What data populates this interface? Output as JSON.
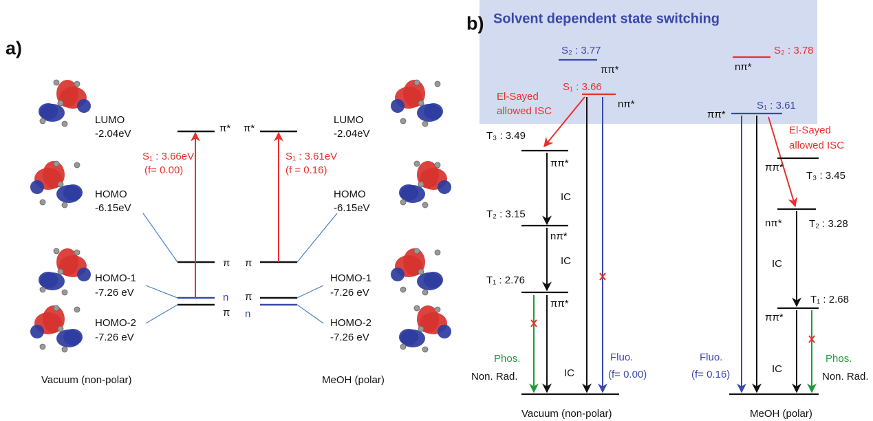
{
  "panel_a": {
    "label": "a)",
    "left_orbitals": [
      {
        "name": "LUMO",
        "energy": "-2.04eV"
      },
      {
        "name": "HOMO",
        "energy": "-6.15eV"
      },
      {
        "name": "HOMO-1",
        "energy": "-7.26 eV"
      },
      {
        "name": "HOMO-2",
        "energy": "-7.26 eV"
      }
    ],
    "right_orbitals": [
      {
        "name": "LUMO",
        "energy": "-2.04eV"
      },
      {
        "name": "HOMO",
        "energy": "-6.15eV"
      },
      {
        "name": "HOMO-1",
        "energy": "-7.26 eV"
      },
      {
        "name": "HOMO-2",
        "energy": "-7.26 eV"
      }
    ],
    "left_levels": [
      "π*",
      "π",
      "n",
      "π"
    ],
    "right_levels": [
      "π*",
      "π",
      "π",
      "n"
    ],
    "left_transition": {
      "state": "S₁ : 3.66eV",
      "oscillator": "(f= 0.00)"
    },
    "right_transition": {
      "state": "S₁ : 3.61eV",
      "oscillator": "(f = 0.16)"
    },
    "left_caption": "Vacuum (non-polar)",
    "right_caption": "MeOH (polar)"
  },
  "panel_b": {
    "label": "b)",
    "title": "Solvent dependent state switching",
    "vacuum": {
      "s2": "S₂ : 3.77",
      "s2_char": "ππ*",
      "s1": "S₁ : 3.66",
      "s1_char": "nπ*",
      "isc": [
        "El-Sayed",
        "allowed ISC"
      ],
      "t3": "T₃ : 3.49",
      "t3_char": "ππ*",
      "t2": "T₂ : 3.15",
      "t2_char": "nπ*",
      "t1": "T₁ : 2.76",
      "t1_char": "ππ*",
      "ic": [
        "IC",
        "IC",
        "IC"
      ],
      "phos": "Phos.",
      "nonrad": "Non. Rad.",
      "fluo": "Fluo.",
      "fluo_f": "(f= 0.00)",
      "caption": "Vacuum (non-polar)"
    },
    "meoh": {
      "s2": "S₂ : 3.78",
      "s2_char": "nπ*",
      "s1": "S₁ : 3.61",
      "s1_char": "ππ*",
      "isc": [
        "El-Sayed",
        "allowed ISC"
      ],
      "t3": "T₃ : 3.45",
      "t3_char": "ππ*",
      "t2": "T₂ : 3.28",
      "t2_char": "nπ*",
      "t1": "T₁ : 2.68",
      "t1_char": "ππ*",
      "ic": [
        "IC",
        "IC"
      ],
      "phos": "Phos.",
      "nonrad": "Non. Rad.",
      "fluo": "Fluo.",
      "fluo_f": "(f= 0.16)",
      "caption": "MeOH (polar)"
    }
  }
}
